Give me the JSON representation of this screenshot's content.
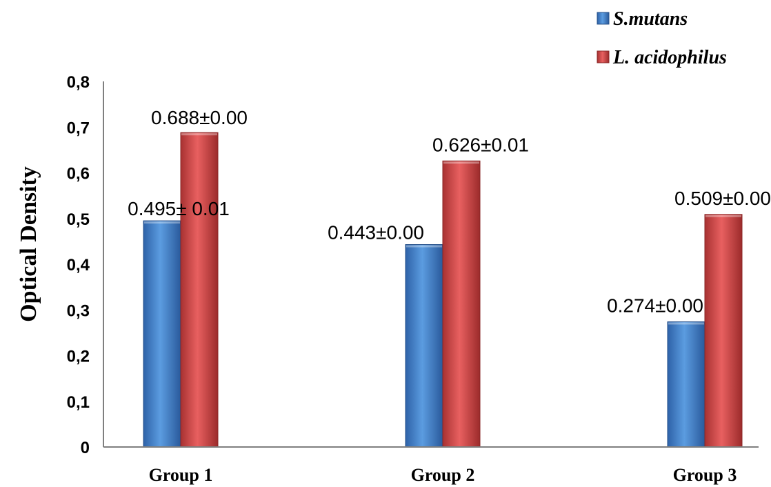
{
  "chart_data": {
    "type": "bar",
    "ylabel": "Optical Density",
    "xlabel": "",
    "categories": [
      "Group 1",
      "Group 2",
      "Group 3"
    ],
    "ylim": [
      0,
      0.8
    ],
    "yticks": [
      0,
      0.1,
      0.2,
      0.3,
      0.4,
      0.5,
      0.6,
      0.7,
      0.8
    ],
    "ytick_labels": [
      "0",
      "0,1",
      "0,2",
      "0,3",
      "0,4",
      "0,5",
      "0,6",
      "0,7",
      "0,8"
    ],
    "grid": false,
    "legend_position": "top-right",
    "series": [
      {
        "name": "S.mutans",
        "color": "#3f7fc6",
        "values": [
          0.495,
          0.443,
          0.274
        ],
        "labels": [
          "0.495± 0.01",
          "0.443±0.00",
          "0.274±0.00"
        ]
      },
      {
        "name": "L. acidophilus",
        "color": "#d84a4a",
        "values": [
          0.688,
          0.626,
          0.509
        ],
        "labels": [
          "0.688±0.00",
          "0.626±0.01",
          "0.509±0.00"
        ]
      }
    ]
  }
}
